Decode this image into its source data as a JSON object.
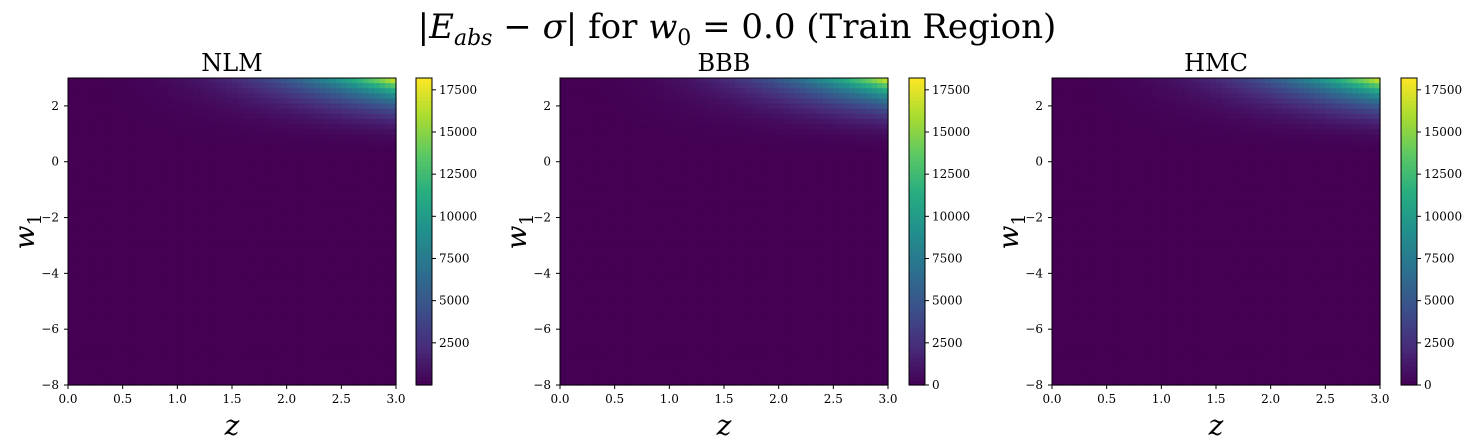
{
  "figure": {
    "suptitle_parts": {
      "prefix": "|",
      "E": "E",
      "sub": "abs",
      "minus": " − ",
      "sigma": "σ",
      "bar": "|",
      "for": " for ",
      "w": "w",
      "w_sub": "0",
      "eq": " = 0.0 (Train Region)"
    },
    "colormap": "viridis"
  },
  "chart_data": [
    {
      "type": "heatmap",
      "title": "NLM",
      "xlabel": "z",
      "ylabel": "w_1",
      "xlim": [
        0.0,
        3.0
      ],
      "ylim": [
        -8,
        3
      ],
      "x_ticks": [
        "0.0",
        "0.5",
        "1.0",
        "1.5",
        "2.0",
        "2.5",
        "3.0"
      ],
      "y_ticks": [
        "−8",
        "−6",
        "−4",
        "−2",
        "0",
        "2"
      ],
      "colorbar_ticks": [
        "2500",
        "5000",
        "7500",
        "10000",
        "12500",
        "15000",
        "17500"
      ],
      "colorbar_range": [
        0,
        18200
      ],
      "max_value_at": {
        "z": 3.0,
        "w_1": 3.0,
        "value": 18200
      }
    },
    {
      "type": "heatmap",
      "title": "BBB",
      "xlabel": "z",
      "ylabel": "w_1",
      "xlim": [
        0.0,
        3.0
      ],
      "ylim": [
        -8,
        3
      ],
      "x_ticks": [
        "0.0",
        "0.5",
        "1.0",
        "1.5",
        "2.0",
        "2.5",
        "3.0"
      ],
      "y_ticks": [
        "−8",
        "−6",
        "−4",
        "−2",
        "0",
        "2"
      ],
      "colorbar_ticks": [
        "0",
        "2500",
        "5000",
        "7500",
        "10000",
        "12500",
        "15000",
        "17500"
      ],
      "colorbar_range": [
        0,
        18200
      ],
      "max_value_at": {
        "z": 3.0,
        "w_1": 3.0,
        "value": 18200
      }
    },
    {
      "type": "heatmap",
      "title": "HMC",
      "xlabel": "z",
      "ylabel": "w_1",
      "xlim": [
        0.0,
        3.0
      ],
      "ylim": [
        -8,
        3
      ],
      "x_ticks": [
        "0.0",
        "0.5",
        "1.0",
        "1.5",
        "2.0",
        "2.5",
        "3.0"
      ],
      "y_ticks": [
        "−8",
        "−6",
        "−4",
        "−2",
        "0",
        "2"
      ],
      "colorbar_ticks": [
        "0",
        "2500",
        "5000",
        "7500",
        "10000",
        "12500",
        "15000",
        "17500"
      ],
      "colorbar_range": [
        0,
        18200
      ],
      "max_value_at": {
        "z": 3.0,
        "w_1": 3.0,
        "value": 18200
      }
    }
  ]
}
